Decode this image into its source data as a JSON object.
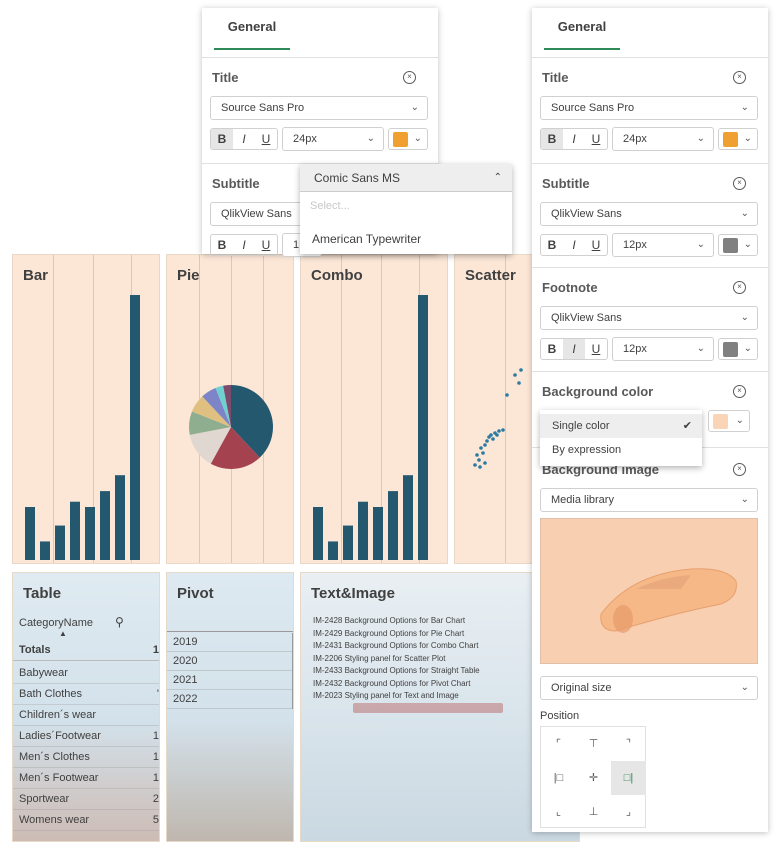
{
  "colors": {
    "accent_green": "#2e8b57",
    "orange": "#f0a030",
    "grey": "#808080",
    "peach": "#fad4b6",
    "bar": "#24586f"
  },
  "panel_left": {
    "tab": "General",
    "title": {
      "label": "Title",
      "font": "Source Sans Pro",
      "size": "24px"
    },
    "subtitle": {
      "label": "Subtitle",
      "font": "QlikView Sans",
      "size": "1"
    },
    "bold": "B",
    "italic": "I",
    "underline": "U"
  },
  "font_dropdown": {
    "selected": "Comic Sans MS",
    "search_placeholder": "Select...",
    "options": [
      "American Typewriter"
    ]
  },
  "panel_right": {
    "tab": "General",
    "title": {
      "label": "Title",
      "font": "Source Sans Pro",
      "size": "24px"
    },
    "subtitle": {
      "label": "Subtitle",
      "font": "QlikView Sans",
      "size": "12px"
    },
    "footnote": {
      "label": "Footnote",
      "font": "QlikView Sans",
      "size": "12px"
    },
    "background_color": {
      "label": "Background color"
    },
    "bg_menu": {
      "options": [
        "Single color",
        "By expression"
      ],
      "checked": "Single color"
    },
    "background_image": {
      "label": "Background image",
      "source": "Media library"
    },
    "image_size": "Original size",
    "position_label": "Position",
    "bold": "B",
    "italic": "I",
    "underline": "U"
  },
  "dashboard": {
    "bar": {
      "title": "Bar"
    },
    "pie": {
      "title": "Pie"
    },
    "combo": {
      "title": "Combo"
    },
    "scatter": {
      "title": "Scatter"
    },
    "table": {
      "title": "Table",
      "column": "CategoryName",
      "totals_label": "Totals",
      "totals_value": "1",
      "rows": [
        {
          "name": "Babywear",
          "value": ""
        },
        {
          "name": "Bath Clothes",
          "value": "'"
        },
        {
          "name": "Children´s wear",
          "value": ""
        },
        {
          "name": "Ladies´Footwear",
          "value": "1"
        },
        {
          "name": "Men´s Clothes",
          "value": "1"
        },
        {
          "name": "Men´s Footwear",
          "value": "1"
        },
        {
          "name": "Sportwear",
          "value": "2"
        },
        {
          "name": "Womens wear",
          "value": "5"
        }
      ]
    },
    "pivot": {
      "title": "Pivot",
      "years": [
        "2019",
        "2020",
        "2021",
        "2022"
      ]
    },
    "text_image": {
      "title": "Text&Image",
      "lines": [
        "IM-2428 Background Options for Bar Chart",
        "IM-2429 Background Options for Pie Chart",
        "IM-2431 Background Options for Combo Chart",
        "IM-2206 Styling panel for Scatter Plot",
        "IM-2433 Background Options for Straight Table",
        "IM-2432 Background Options for Pivot Chart",
        "IM-2023 Styling panel for Text and Image"
      ]
    }
  },
  "chart_data": [
    {
      "type": "bar",
      "title": "Bar",
      "values": [
        20,
        7,
        13,
        22,
        20,
        26,
        32,
        100
      ]
    },
    {
      "type": "pie",
      "title": "Pie",
      "values": [
        38,
        20,
        14,
        9,
        7,
        6,
        3,
        3
      ]
    },
    {
      "type": "bar",
      "title": "Combo",
      "values": [
        20,
        7,
        13,
        22,
        20,
        26,
        32,
        100
      ]
    },
    {
      "type": "scatter",
      "title": "Scatter",
      "points": [
        [
          1,
          2
        ],
        [
          2,
          3
        ],
        [
          1.5,
          2.5
        ],
        [
          3,
          4
        ],
        [
          2.5,
          3.5
        ]
      ]
    }
  ]
}
